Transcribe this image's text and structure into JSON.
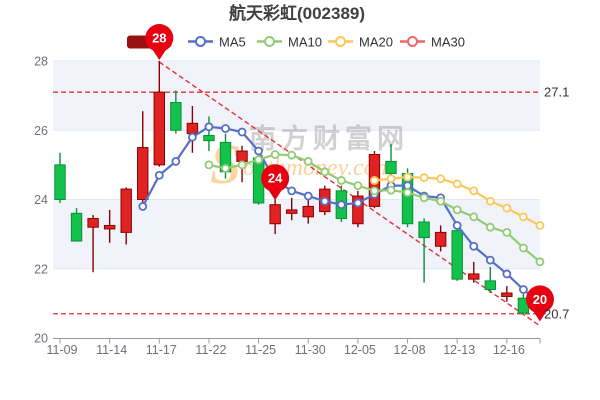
{
  "title": "航天彩虹(002389)",
  "legend": {
    "items": [
      {
        "label": "K",
        "type": "candle-rect",
        "color": "#9a1010"
      },
      {
        "label": "MA5",
        "type": "line-ring",
        "color": "#5470c6"
      },
      {
        "label": "MA10",
        "type": "line-ring",
        "color": "#91cc75"
      },
      {
        "label": "MA20",
        "type": "line-ring",
        "color": "#fac858"
      },
      {
        "label": "MA30",
        "type": "line-ring",
        "color": "#ee6666"
      }
    ]
  },
  "watermark": {
    "cn_text": "南方财富网",
    "en_text": "outhmoney.com",
    "s_glyph": "S"
  },
  "annotations": {
    "upper_line": {
      "value": 27.1,
      "label": "27.1"
    },
    "lower_line": {
      "value": 20.7,
      "label": "20.7"
    },
    "trend_line": {
      "from_candle": 7,
      "from_price": 28.0,
      "to_candle": 30,
      "to_price": 20.35
    },
    "markers": [
      {
        "label": "28",
        "candle": 7,
        "anchor_price": 28.0
      },
      {
        "label": "24",
        "candle": 14,
        "anchor_price": 23.95
      },
      {
        "label": "20",
        "candle": 30,
        "anchor_price": 20.45
      }
    ]
  },
  "y_axis": {
    "ticks": [
      28,
      26,
      24,
      22,
      20
    ]
  },
  "x_axis": {
    "tick_labels": [
      "11-09",
      "11-14",
      "11-17",
      "11-22",
      "11-25",
      "11-30",
      "12-05",
      "12-08",
      "12-13",
      "12-16"
    ],
    "tick_every": 3
  },
  "chart_data": {
    "type": "candlestick",
    "title": "航天彩虹(002389)",
    "ylim": [
      20,
      28
    ],
    "grid_bands": [
      [
        28,
        26
      ],
      [
        24,
        22
      ]
    ],
    "candle_count": 30,
    "up_color_means": "red=close>=open, green=close<open",
    "candles": [
      {
        "open": 25.0,
        "close": 24.0,
        "high": 25.35,
        "low": 23.9
      },
      {
        "open": 23.6,
        "close": 22.8,
        "high": 23.75,
        "low": 22.8
      },
      {
        "open": 23.2,
        "close": 23.45,
        "high": 23.55,
        "low": 21.9
      },
      {
        "open": 23.15,
        "close": 23.25,
        "high": 23.7,
        "low": 22.75
      },
      {
        "open": 23.05,
        "close": 24.3,
        "high": 24.35,
        "low": 22.7
      },
      {
        "open": 24.0,
        "close": 25.5,
        "high": 26.55,
        "low": 23.9
      },
      {
        "open": 25.0,
        "close": 27.1,
        "high": 28.0,
        "low": 24.95
      },
      {
        "open": 26.8,
        "close": 26.0,
        "high": 27.15,
        "low": 25.9
      },
      {
        "open": 25.9,
        "close": 26.2,
        "high": 26.7,
        "low": 25.35
      },
      {
        "open": 25.85,
        "close": 25.7,
        "high": 26.4,
        "low": 25.4
      },
      {
        "open": 25.65,
        "close": 24.8,
        "high": 25.9,
        "low": 24.6
      },
      {
        "open": 25.1,
        "close": 25.4,
        "high": 25.55,
        "low": 24.5
      },
      {
        "open": 25.2,
        "close": 23.9,
        "high": 25.3,
        "low": 23.85
      },
      {
        "open": 23.3,
        "close": 23.85,
        "high": 24.0,
        "low": 23.0
      },
      {
        "open": 23.6,
        "close": 23.7,
        "high": 24.05,
        "low": 23.4
      },
      {
        "open": 23.5,
        "close": 23.8,
        "high": 24.15,
        "low": 23.3
      },
      {
        "open": 23.65,
        "close": 24.3,
        "high": 24.4,
        "low": 23.55
      },
      {
        "open": 24.25,
        "close": 23.45,
        "high": 24.4,
        "low": 23.35
      },
      {
        "open": 23.3,
        "close": 24.1,
        "high": 24.25,
        "low": 23.2
      },
      {
        "open": 23.8,
        "close": 25.3,
        "high": 25.4,
        "low": 23.75
      },
      {
        "open": 25.1,
        "close": 24.75,
        "high": 25.6,
        "low": 24.3
      },
      {
        "open": 24.75,
        "close": 23.3,
        "high": 24.9,
        "low": 23.2
      },
      {
        "open": 23.35,
        "close": 22.9,
        "high": 23.45,
        "low": 21.6
      },
      {
        "open": 22.65,
        "close": 23.05,
        "high": 23.25,
        "low": 22.5
      },
      {
        "open": 23.1,
        "close": 21.7,
        "high": 23.2,
        "low": 21.65
      },
      {
        "open": 21.7,
        "close": 21.85,
        "high": 22.2,
        "low": 21.6
      },
      {
        "open": 21.65,
        "close": 21.4,
        "high": 22.05,
        "low": 21.3
      },
      {
        "open": 21.2,
        "close": 21.3,
        "high": 21.5,
        "low": 21.05
      },
      {
        "open": 21.15,
        "close": 20.72,
        "high": 21.4,
        "low": 20.7
      },
      {
        "open": 20.95,
        "close": 20.7,
        "high": 21.05,
        "low": 20.65
      }
    ],
    "series": [
      {
        "name": "MA5",
        "start_index": 5,
        "color_key": "ma5",
        "values": [
          23.8,
          24.7,
          25.1,
          25.8,
          26.1,
          26.05,
          25.95,
          25.4,
          24.55,
          24.25,
          24.1,
          23.95,
          23.85,
          23.9,
          24.15,
          24.4,
          24.4,
          24.1,
          24.05,
          23.25,
          22.65,
          22.25,
          21.85,
          21.4,
          21.0
        ]
      },
      {
        "name": "MA10",
        "start_index": 9,
        "color_key": "ma10",
        "values": [
          25.0,
          24.9,
          25.0,
          25.15,
          25.3,
          25.28,
          25.1,
          24.8,
          24.55,
          24.4,
          24.25,
          24.27,
          24.2,
          24.05,
          23.95,
          23.7,
          23.5,
          23.2,
          23.05,
          22.6,
          22.2
        ]
      },
      {
        "name": "MA20",
        "start_index": 19,
        "color_key": "ma20",
        "values": [
          24.55,
          24.6,
          24.65,
          24.63,
          24.6,
          24.45,
          24.25,
          23.95,
          23.75,
          23.5,
          23.25
        ]
      },
      {
        "name": "MA30",
        "start_index": 29,
        "color_key": "ma30",
        "values": []
      }
    ]
  },
  "colors": {
    "up_fill": "#e02222",
    "up_border": "#8a0000",
    "down_fill": "#12c24b",
    "down_border": "#089138",
    "ma5": "#5470c6",
    "ma10": "#91cc75",
    "ma20": "#fac858",
    "ma30": "#ee6666",
    "marker": "#e60012",
    "threshold": "#e53030",
    "band": "#f0f3fa",
    "grid": "#e3e8f2",
    "axis_line": "#999999",
    "axis_text": "#6e7079",
    "legend_text": "#333333",
    "k_icon": "#9a1010",
    "watermark_gray": "#9a9a9a",
    "watermark_orange": "#f59a23"
  }
}
